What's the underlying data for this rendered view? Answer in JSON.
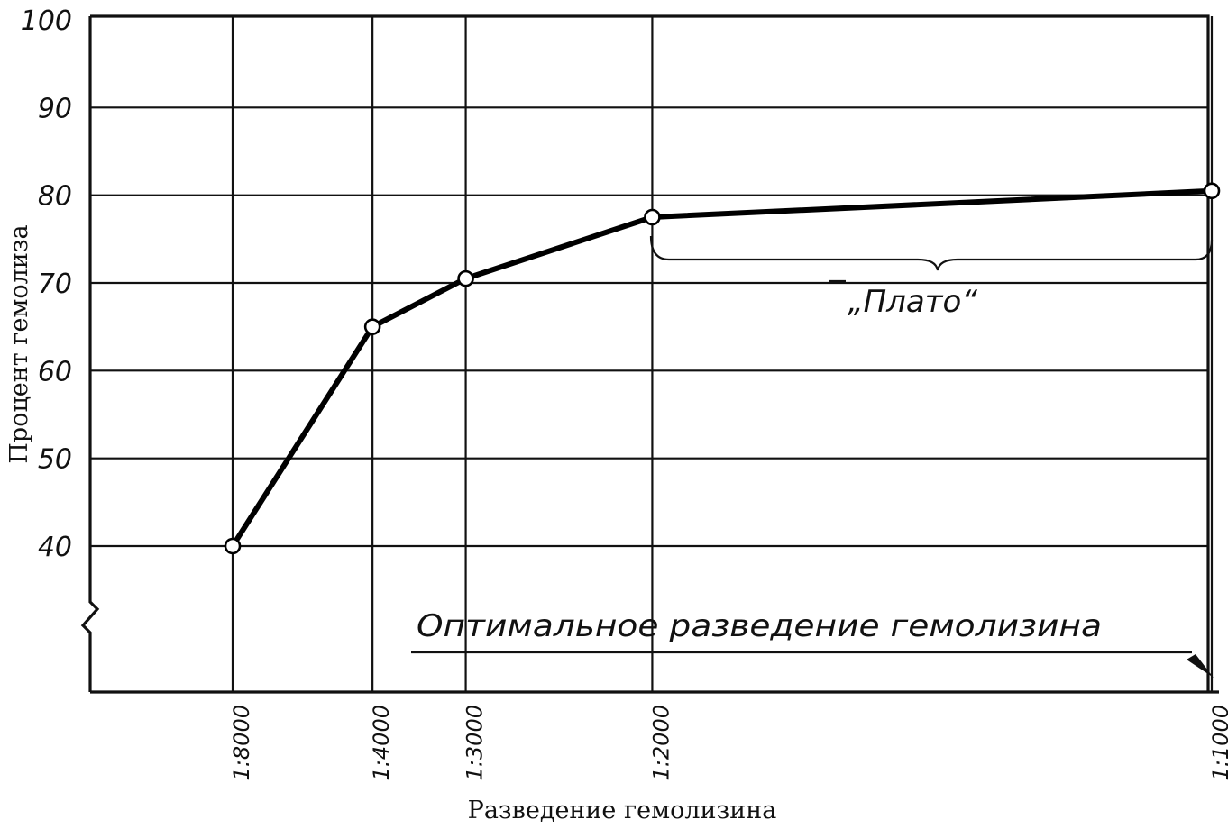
{
  "chart_data": {
    "type": "line",
    "title": "",
    "xlabel": "Разведение гемолизина",
    "ylabel": "Процент гемолиза",
    "categories": [
      "1:8000",
      "1:4000",
      "1:3000",
      "1:2000",
      "1:1000"
    ],
    "x_reciprocal": [
      8000,
      4000,
      3000,
      2000,
      1000
    ],
    "values": [
      40,
      65,
      70.5,
      77.5,
      80.5
    ],
    "yticks": [
      "100",
      "90",
      "80",
      "70",
      "60",
      "50",
      "40"
    ],
    "ylim": [
      40,
      100
    ],
    "axis_break": true,
    "grid": true,
    "annotations": {
      "plateau": "„Плато“",
      "optimal": "Оптимальное разведение гемолизина"
    }
  }
}
